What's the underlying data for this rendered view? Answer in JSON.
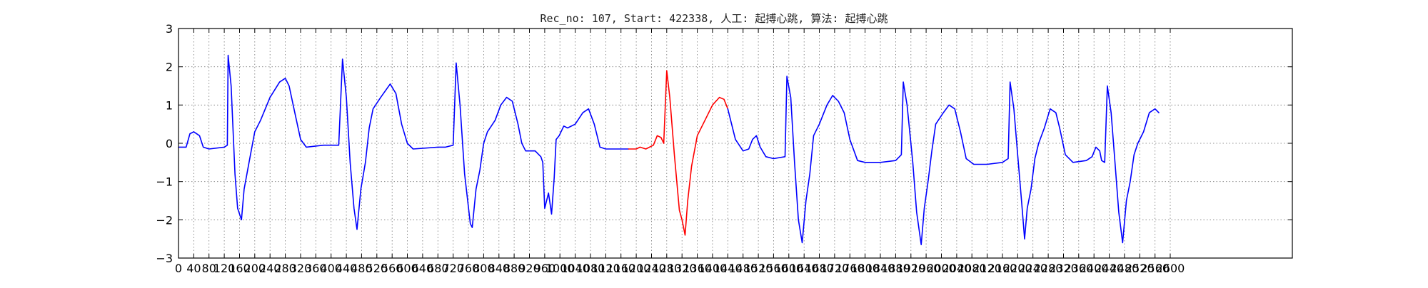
{
  "chart_data": {
    "type": "line",
    "title": "Rec_no: 107, Start: 422338, 人工: 起搏心跳, 算法: 起搏心跳",
    "xlabel": "",
    "ylabel": "",
    "xlim": [
      0,
      2920
    ],
    "ylim": [
      -3,
      3
    ],
    "grid": true,
    "x_ticks": [
      0,
      40,
      80,
      120,
      160,
      200,
      240,
      280,
      320,
      360,
      400,
      440,
      480,
      520,
      560,
      600,
      640,
      680,
      720,
      760,
      800,
      840,
      880,
      920,
      960,
      1000,
      1040,
      1080,
      1120,
      1160,
      1200,
      1240,
      1280,
      1320,
      1360,
      1400,
      1440,
      1480,
      1520,
      1560,
      1600,
      1640,
      1680,
      1720,
      1760,
      1800,
      1840,
      1880,
      1920,
      1960,
      2000,
      2040,
      2080,
      2120,
      2160,
      2200,
      2240,
      2280,
      2320,
      2360,
      2400,
      2440,
      2480,
      2520,
      2560,
      2600
    ],
    "y_ticks": [
      -3,
      -2,
      -1,
      0,
      1,
      2,
      3
    ],
    "y_tick_labels": [
      "−3",
      "−2",
      "−1",
      "0",
      "1",
      "2",
      "3"
    ],
    "series": [
      {
        "color": "#0000ff",
        "points": [
          [
            0,
            -0.1
          ],
          [
            20,
            -0.1
          ],
          [
            30,
            0.25
          ],
          [
            40,
            0.3
          ],
          [
            55,
            0.2
          ],
          [
            65,
            -0.1
          ],
          [
            80,
            -0.15
          ],
          [
            120,
            -0.1
          ],
          [
            128,
            -0.05
          ],
          [
            130,
            2.3
          ],
          [
            138,
            1.5
          ],
          [
            148,
            -0.8
          ],
          [
            155,
            -1.7
          ],
          [
            165,
            -2.0
          ],
          [
            172,
            -1.2
          ],
          [
            185,
            -0.5
          ],
          [
            200,
            0.3
          ],
          [
            215,
            0.6
          ],
          [
            240,
            1.2
          ],
          [
            265,
            1.6
          ],
          [
            280,
            1.7
          ],
          [
            290,
            1.5
          ],
          [
            305,
            0.8
          ],
          [
            320,
            0.1
          ],
          [
            335,
            -0.1
          ],
          [
            380,
            -0.05
          ],
          [
            400,
            -0.05
          ],
          [
            420,
            -0.05
          ],
          [
            430,
            2.2
          ],
          [
            440,
            1.2
          ],
          [
            450,
            -0.5
          ],
          [
            460,
            -1.7
          ],
          [
            468,
            -2.25
          ],
          [
            478,
            -1.2
          ],
          [
            490,
            -0.5
          ],
          [
            500,
            0.4
          ],
          [
            510,
            0.9
          ],
          [
            530,
            1.2
          ],
          [
            555,
            1.55
          ],
          [
            570,
            1.3
          ],
          [
            585,
            0.5
          ],
          [
            600,
            0.0
          ],
          [
            615,
            -0.15
          ],
          [
            680,
            -0.1
          ],
          [
            700,
            -0.1
          ],
          [
            720,
            -0.05
          ],
          [
            728,
            2.1
          ],
          [
            738,
            1.0
          ],
          [
            750,
            -0.8
          ],
          [
            765,
            -2.1
          ],
          [
            770,
            -2.2
          ],
          [
            780,
            -1.2
          ],
          [
            790,
            -0.7
          ],
          [
            800,
            0.0
          ],
          [
            810,
            0.3
          ],
          [
            830,
            0.6
          ],
          [
            845,
            1.0
          ],
          [
            860,
            1.2
          ],
          [
            875,
            1.1
          ],
          [
            890,
            0.5
          ],
          [
            900,
            0.0
          ],
          [
            910,
            -0.2
          ],
          [
            935,
            -0.2
          ],
          [
            950,
            -0.35
          ],
          [
            955,
            -0.5
          ],
          [
            960,
            -1.7
          ],
          [
            970,
            -1.3
          ],
          [
            978,
            -1.85
          ],
          [
            985,
            -0.9
          ],
          [
            990,
            0.1
          ],
          [
            998,
            0.2
          ],
          [
            1010,
            0.45
          ],
          [
            1020,
            0.4
          ],
          [
            1040,
            0.5
          ],
          [
            1060,
            0.8
          ],
          [
            1075,
            0.9
          ],
          [
            1090,
            0.5
          ],
          [
            1105,
            -0.1
          ],
          [
            1120,
            -0.15
          ],
          [
            1160,
            -0.15
          ],
          [
            1180,
            -0.15
          ]
        ]
      },
      {
        "color": "#ff0000",
        "points": [
          [
            1180,
            -0.15
          ],
          [
            1200,
            -0.15
          ],
          [
            1210,
            -0.1
          ],
          [
            1225,
            -0.15
          ],
          [
            1245,
            -0.05
          ],
          [
            1255,
            0.2
          ],
          [
            1265,
            0.15
          ],
          [
            1272,
            0.0
          ],
          [
            1280,
            1.9
          ],
          [
            1288,
            1.2
          ],
          [
            1300,
            -0.3
          ],
          [
            1313,
            -1.75
          ],
          [
            1320,
            -2.0
          ],
          [
            1328,
            -2.4
          ],
          [
            1335,
            -1.5
          ],
          [
            1345,
            -0.6
          ],
          [
            1360,
            0.2
          ],
          [
            1380,
            0.6
          ],
          [
            1400,
            1.0
          ],
          [
            1418,
            1.2
          ],
          [
            1430,
            1.15
          ],
          [
            1440,
            0.9
          ]
        ]
      },
      {
        "color": "#0000ff",
        "points": [
          [
            1440,
            0.9
          ],
          [
            1460,
            0.1
          ],
          [
            1480,
            -0.2
          ],
          [
            1495,
            -0.15
          ],
          [
            1505,
            0.1
          ],
          [
            1515,
            0.2
          ],
          [
            1525,
            -0.1
          ],
          [
            1540,
            -0.35
          ],
          [
            1560,
            -0.4
          ],
          [
            1590,
            -0.35
          ],
          [
            1595,
            1.75
          ],
          [
            1605,
            1.2
          ],
          [
            1615,
            -0.5
          ],
          [
            1625,
            -2.0
          ],
          [
            1635,
            -2.6
          ],
          [
            1645,
            -1.5
          ],
          [
            1655,
            -0.8
          ],
          [
            1665,
            0.2
          ],
          [
            1680,
            0.5
          ],
          [
            1700,
            1.0
          ],
          [
            1715,
            1.25
          ],
          [
            1730,
            1.1
          ],
          [
            1745,
            0.8
          ],
          [
            1760,
            0.1
          ],
          [
            1780,
            -0.45
          ],
          [
            1800,
            -0.5
          ],
          [
            1840,
            -0.5
          ],
          [
            1880,
            -0.45
          ],
          [
            1895,
            -0.3
          ],
          [
            1900,
            1.6
          ],
          [
            1910,
            1.0
          ],
          [
            1925,
            -0.5
          ],
          [
            1935,
            -1.8
          ],
          [
            1947,
            -2.65
          ],
          [
            1955,
            -1.7
          ],
          [
            1965,
            -1.0
          ],
          [
            1975,
            -0.2
          ],
          [
            1985,
            0.5
          ],
          [
            2005,
            0.8
          ],
          [
            2020,
            1.0
          ],
          [
            2035,
            0.9
          ],
          [
            2050,
            0.3
          ],
          [
            2065,
            -0.4
          ],
          [
            2085,
            -0.55
          ],
          [
            2120,
            -0.55
          ],
          [
            2160,
            -0.5
          ],
          [
            2175,
            -0.4
          ],
          [
            2180,
            1.6
          ],
          [
            2190,
            0.9
          ],
          [
            2200,
            -0.3
          ],
          [
            2210,
            -1.5
          ],
          [
            2218,
            -2.5
          ],
          [
            2225,
            -1.7
          ],
          [
            2235,
            -1.2
          ],
          [
            2245,
            -0.4
          ],
          [
            2255,
            0.0
          ],
          [
            2270,
            0.4
          ],
          [
            2285,
            0.9
          ],
          [
            2300,
            0.8
          ],
          [
            2310,
            0.4
          ],
          [
            2325,
            -0.3
          ],
          [
            2345,
            -0.5
          ],
          [
            2380,
            -0.45
          ],
          [
            2395,
            -0.35
          ],
          [
            2405,
            -0.1
          ],
          [
            2415,
            -0.2
          ],
          [
            2420,
            -0.45
          ],
          [
            2428,
            -0.5
          ],
          [
            2435,
            1.5
          ],
          [
            2445,
            0.8
          ],
          [
            2455,
            -0.5
          ],
          [
            2465,
            -1.8
          ],
          [
            2475,
            -2.6
          ],
          [
            2485,
            -1.5
          ],
          [
            2495,
            -1.0
          ],
          [
            2505,
            -0.3
          ],
          [
            2515,
            0.0
          ],
          [
            2530,
            0.3
          ],
          [
            2545,
            0.8
          ],
          [
            2560,
            0.9
          ],
          [
            2570,
            0.8
          ]
        ]
      }
    ]
  }
}
